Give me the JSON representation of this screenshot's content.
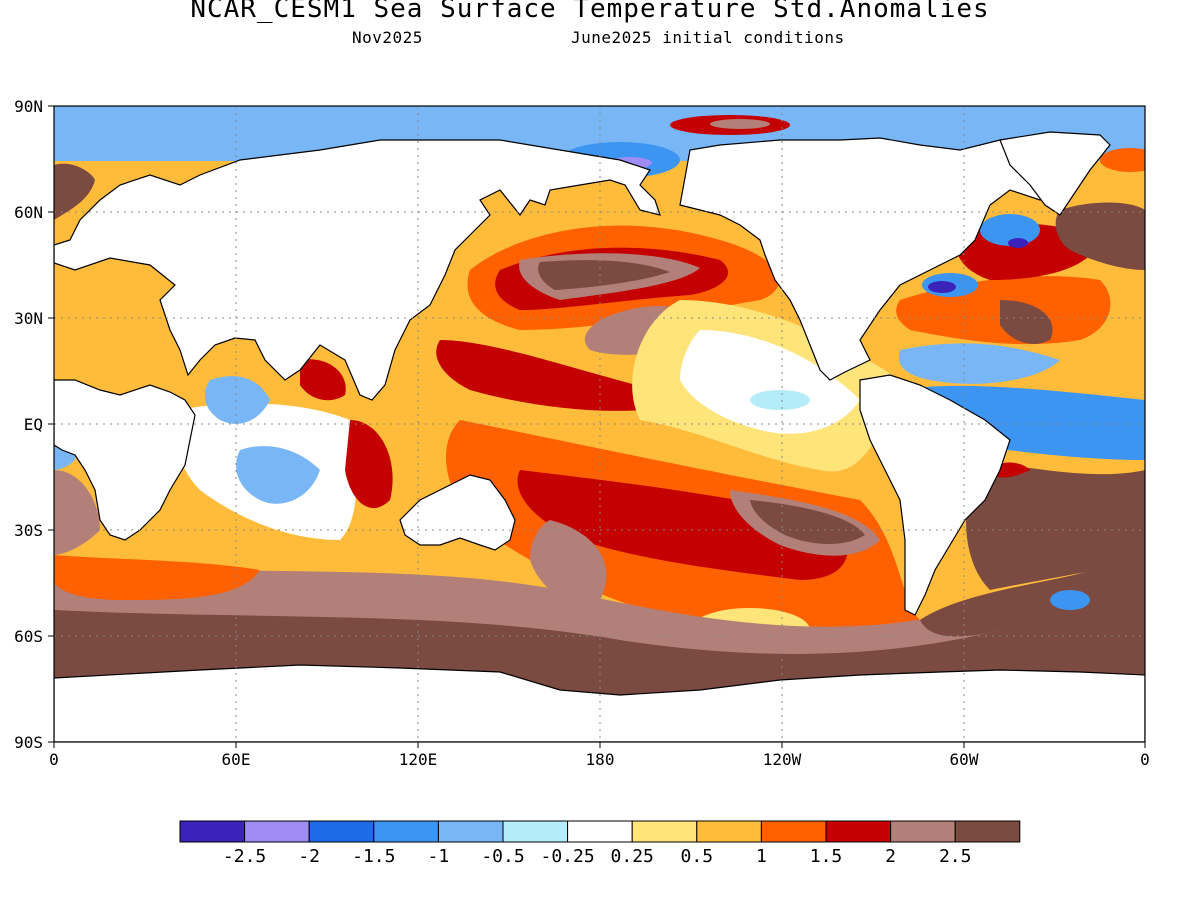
{
  "header": {
    "title": "NCAR_CESM1 Sea Surface Temperature Std.Anomalies",
    "valid_month": "Nov2025",
    "init": "June2025 initial conditions"
  },
  "map": {
    "projection": "equirectangular",
    "lon_range": [
      0,
      360
    ],
    "lat_range": [
      -90,
      90
    ],
    "lat_labels": [
      "90N",
      "60N",
      "30N",
      "EQ",
      "30S",
      "60S",
      "90S"
    ],
    "lon_labels": [
      "0",
      "60E",
      "120E",
      "180",
      "120W",
      "60W",
      "0"
    ],
    "land_color": "#ffffff",
    "gridlines": "dotted"
  },
  "colorbar": {
    "colors": [
      "#3b22b8",
      "#9f8cf4",
      "#1f6ae6",
      "#3d95f2",
      "#78b6f6",
      "#b4ecfa",
      "#ffffff",
      "#ffe47a",
      "#ffbc3a",
      "#ff6000",
      "#c40000",
      "#b28078",
      "#7b4a40"
    ],
    "labels": [
      "-2.5",
      "-2",
      "-1.5",
      "-1",
      "-0.5",
      "-0.25",
      "0.25",
      "0.5",
      "1",
      "1.5",
      "2",
      "2.5"
    ]
  }
}
